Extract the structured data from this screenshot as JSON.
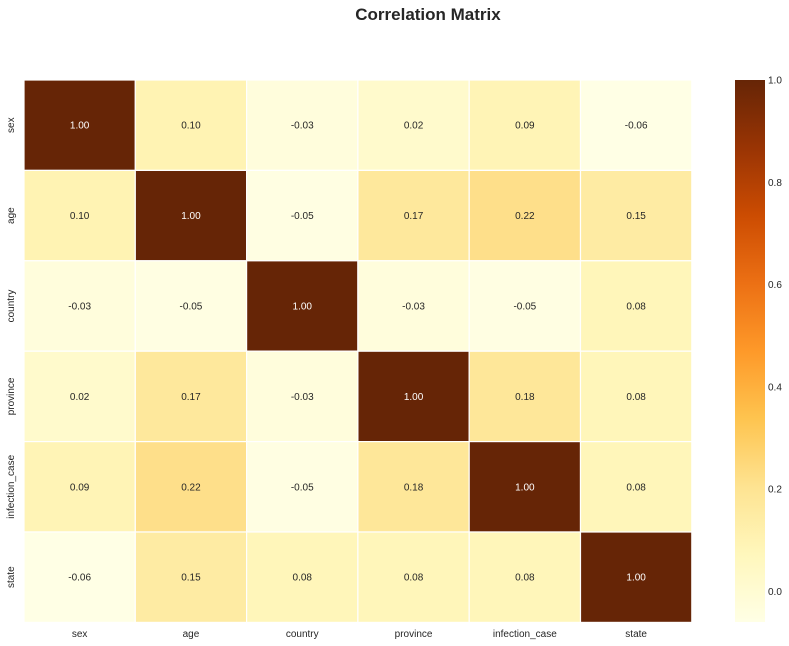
{
  "chart_data": {
    "type": "heatmap",
    "title": "Correlation Matrix",
    "x_labels": [
      "sex",
      "age",
      "country",
      "province",
      "infection_case",
      "state"
    ],
    "y_labels": [
      "sex",
      "age",
      "country",
      "province",
      "infection_case",
      "state"
    ],
    "values": [
      [
        1.0,
        0.1,
        -0.03,
        0.02,
        0.09,
        -0.06
      ],
      [
        0.1,
        1.0,
        -0.05,
        0.17,
        0.22,
        0.15
      ],
      [
        -0.03,
        -0.05,
        1.0,
        -0.03,
        -0.05,
        0.08
      ],
      [
        0.02,
        0.17,
        -0.03,
        1.0,
        0.18,
        0.08
      ],
      [
        0.09,
        0.22,
        -0.05,
        0.18,
        1.0,
        0.08
      ],
      [
        -0.06,
        0.15,
        0.08,
        0.08,
        0.08,
        1.0
      ]
    ],
    "value_format": "0.00",
    "colormap": "YlOrBr",
    "vmin": -0.06,
    "vmax": 1.0,
    "colorbar": {
      "ticks": [
        0.0,
        0.2,
        0.4,
        0.6,
        0.8,
        1.0
      ],
      "tick_labels": [
        "0.0",
        "0.2",
        "0.4",
        "0.6",
        "0.8",
        "1.0"
      ],
      "placement": "right"
    },
    "cell_border_color": "#ffffff"
  }
}
